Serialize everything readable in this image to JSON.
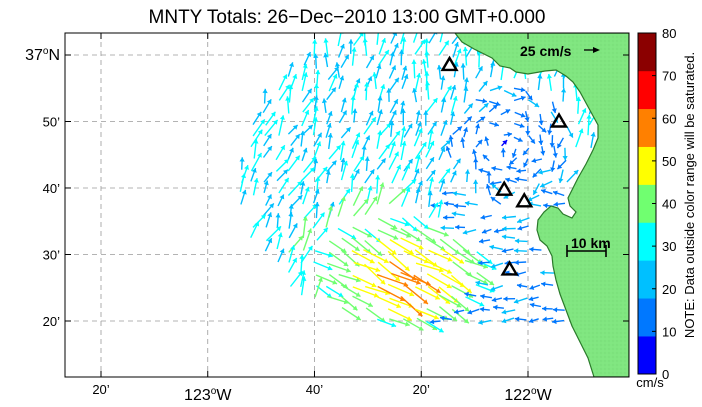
{
  "title": "MNTY Totals: 26−Dec−2010 13:00 GMT+0.000",
  "scale_label": "25 cm/s",
  "distance_label": "10 km",
  "note": "NOTE: Data outside color range will be saturated.",
  "lat_labels": [
    {
      "lat": 37.0,
      "deg": "37",
      "unit": "N"
    },
    {
      "lat": 36.8333,
      "text": "50’"
    },
    {
      "lat": 36.6667,
      "text": "40’"
    },
    {
      "lat": 36.5,
      "text": "30’"
    },
    {
      "lat": 36.3333,
      "text": "20’"
    }
  ],
  "lon_labels": [
    {
      "lon": -123.3333,
      "text": "20’"
    },
    {
      "lon": -123.0,
      "deg": "123",
      "unit": "W"
    },
    {
      "lon": -122.6667,
      "text": "40’"
    },
    {
      "lon": -122.3333,
      "text": "20’"
    },
    {
      "lon": -122.0,
      "deg": "122",
      "unit": "W"
    }
  ],
  "colorbar": {
    "ticks": [
      "0",
      "10",
      "20",
      "30",
      "40",
      "50",
      "60",
      "70",
      "80"
    ],
    "colors": [
      "#0000ff",
      "#0078ff",
      "#00c0ff",
      "#00ffff",
      "#70ff70",
      "#ffff00",
      "#ff8000",
      "#ff0000",
      "#8b0000"
    ],
    "unit": "cm/s"
  },
  "colors": {
    "land": "#80e680",
    "coast": "#2a7a2a",
    "grid": "#9a9a9a"
  },
  "stations": [
    {
      "lon": -122.245,
      "lat": 36.975
    },
    {
      "lon": -121.9032,
      "lat": 36.8333
    },
    {
      "lon": -122.0742,
      "lat": 36.6625
    },
    {
      "lon": -122.0117,
      "lat": 36.6333
    },
    {
      "lon": -122.0576,
      "lat": 36.4625
    }
  ]
}
